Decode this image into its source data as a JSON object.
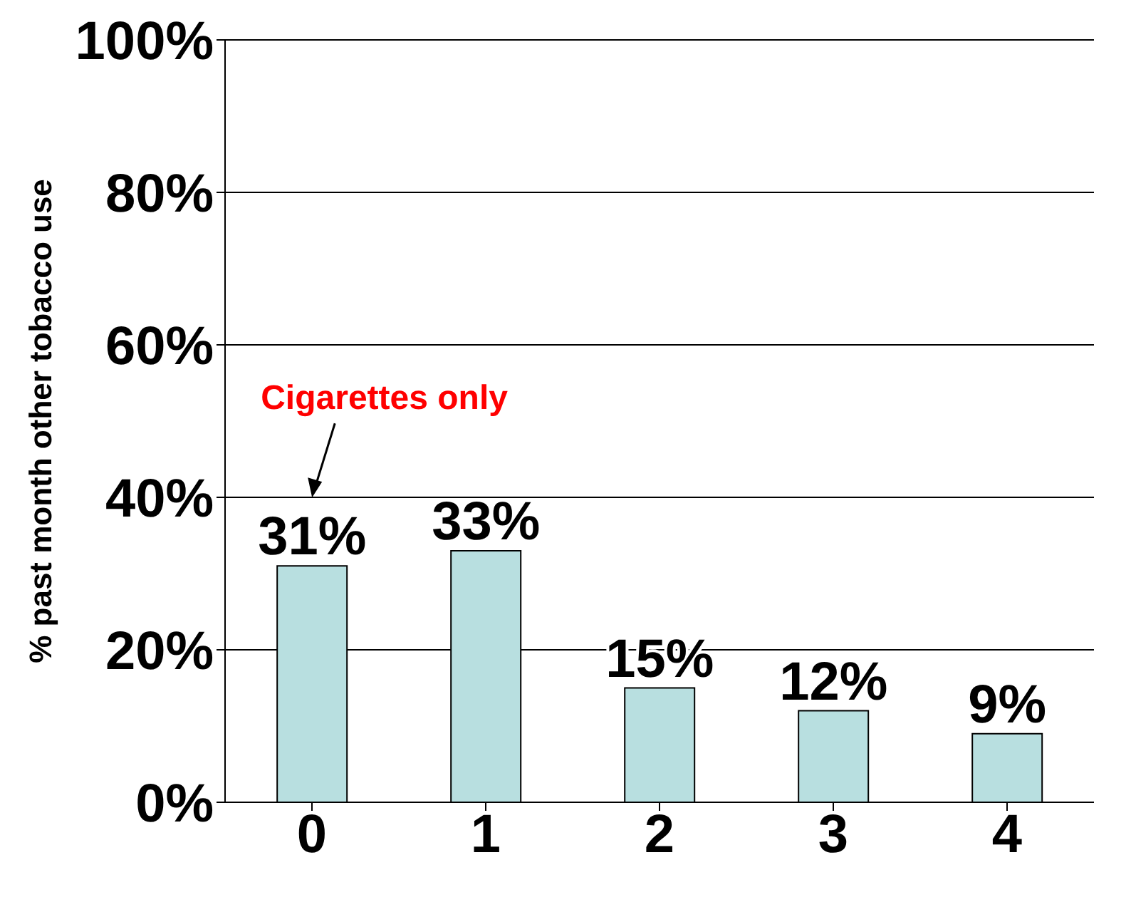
{
  "chart_data": {
    "type": "bar",
    "ylabel": "% past month other tobacco use",
    "categories": [
      "0",
      "1",
      "2",
      "3",
      "4"
    ],
    "values": [
      31,
      33,
      15,
      12,
      9
    ],
    "value_labels": [
      "31%",
      "33%",
      "15%",
      "12%",
      "9%"
    ],
    "color": "#b8dfe0",
    "ylim": [
      0,
      100
    ],
    "yticks": [
      {
        "value": 0,
        "label": "0%"
      },
      {
        "value": 20,
        "label": "20%"
      },
      {
        "value": 40,
        "label": "40%"
      },
      {
        "value": 60,
        "label": "60%"
      },
      {
        "value": 80,
        "label": "80%"
      },
      {
        "value": 100,
        "label": "100%"
      }
    ],
    "grid": "y",
    "legend": false,
    "annotations": [
      "Cigarettes only"
    ]
  }
}
